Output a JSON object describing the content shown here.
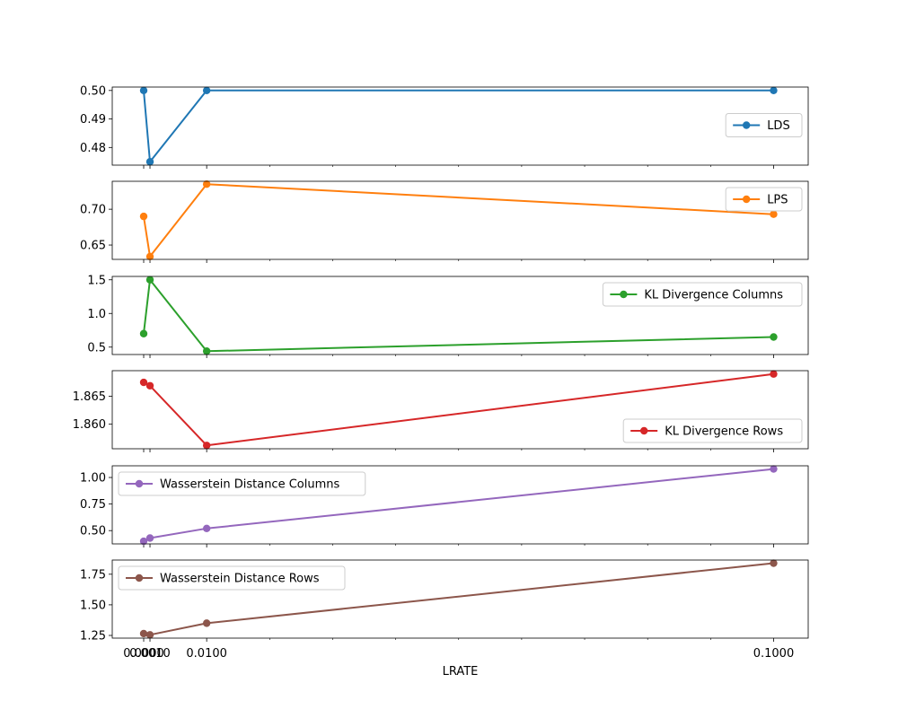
{
  "chart_data": {
    "type": "line",
    "xlabel": "LRATE",
    "xlim": [
      -0.00499,
      0.10549
    ],
    "x": [
      0.0,
      0.001,
      0.01,
      0.1
    ],
    "x_ticks": [
      0.0,
      0.001,
      0.01,
      0.1
    ],
    "x_tick_labels": [
      "0.0000",
      "0.0010",
      "0.0100",
      "0.1000"
    ],
    "x_minor_ticks": [
      0.02,
      0.03,
      0.04,
      0.05,
      0.06,
      0.07,
      0.08,
      0.09
    ],
    "panels": [
      {
        "name": "LDS",
        "color": "#1f77b4",
        "values": [
          0.5,
          0.475,
          0.5,
          0.5
        ],
        "ylim": [
          0.4738,
          0.5012
        ],
        "y_ticks": [
          0.48,
          0.49,
          0.5
        ],
        "y_tick_labels": [
          "0.48",
          "0.49",
          "0.50"
        ],
        "legend_loc": "right"
      },
      {
        "name": "LPS",
        "color": "#ff7f0e",
        "values": [
          0.69,
          0.634,
          0.735,
          0.693
        ],
        "ylim": [
          0.63,
          0.739
        ],
        "y_ticks": [
          0.65,
          0.7
        ],
        "y_tick_labels": [
          "0.65",
          "0.70"
        ],
        "legend_loc": "upper right"
      },
      {
        "name": "KL Divergence Columns",
        "color": "#2ca02c",
        "values": [
          0.7,
          1.5,
          0.44,
          0.65
        ],
        "ylim": [
          0.39,
          1.55
        ],
        "y_ticks": [
          0.5,
          1.0,
          1.5
        ],
        "y_tick_labels": [
          "0.5",
          "1.0",
          "1.5"
        ],
        "legend_loc": "upper right"
      },
      {
        "name": "KL Divergence Rows",
        "color": "#d62728",
        "values": [
          1.8675,
          1.8669,
          1.8562,
          1.869
        ],
        "ylim": [
          1.8556,
          1.8696
        ],
        "y_ticks": [
          1.86,
          1.865
        ],
        "y_tick_labels": [
          "1.860",
          "1.865"
        ],
        "legend_loc": "lower right"
      },
      {
        "name": "Wasserstein Distance Columns",
        "color": "#9467bd",
        "values": [
          0.4,
          0.43,
          0.52,
          1.08
        ],
        "ylim": [
          0.375,
          1.11
        ],
        "y_ticks": [
          0.5,
          0.75,
          1.0
        ],
        "y_tick_labels": [
          "0.50",
          "0.75",
          "1.00"
        ],
        "legend_loc": "upper left"
      },
      {
        "name": "Wasserstein Distance Rows",
        "color": "#8c564b",
        "values": [
          1.265,
          1.255,
          1.35,
          1.84
        ],
        "ylim": [
          1.228,
          1.866
        ],
        "y_ticks": [
          1.25,
          1.5,
          1.75
        ],
        "y_tick_labels": [
          "1.25",
          "1.50",
          "1.75"
        ],
        "legend_loc": "upper left"
      }
    ]
  }
}
